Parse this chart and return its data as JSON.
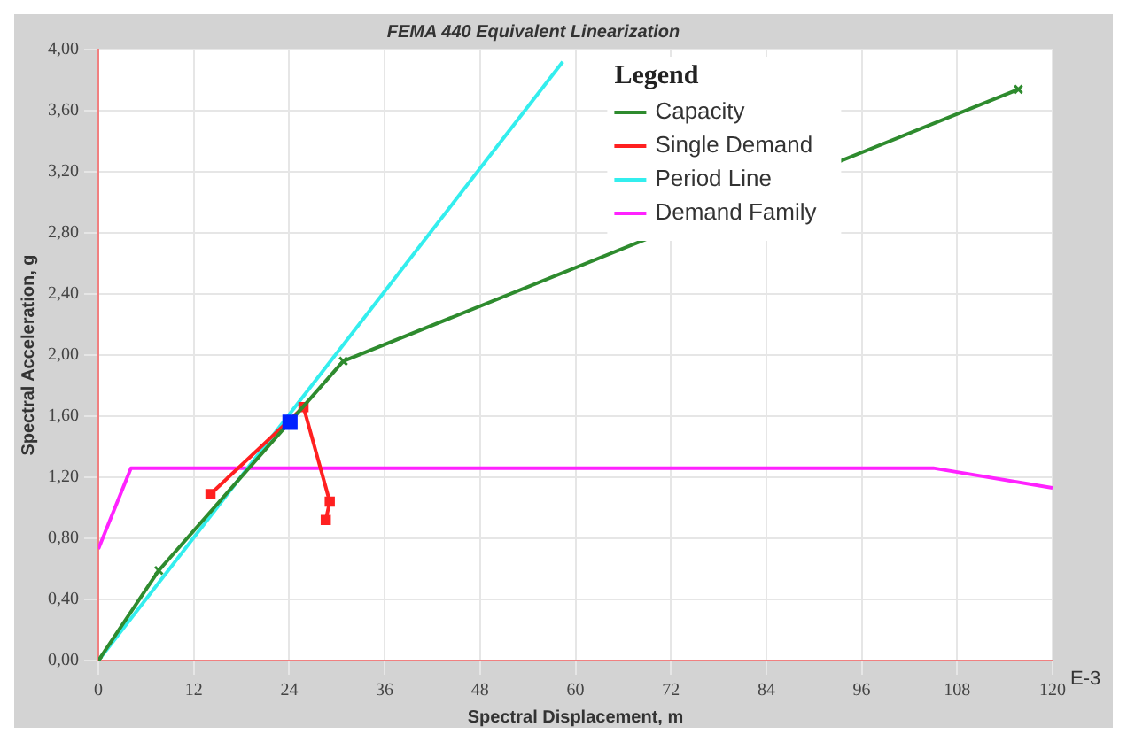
{
  "chart_data": {
    "type": "line",
    "title": "FEMA 440 Equivalent Linearization",
    "xlabel": "Spectral Displacement, m",
    "ylabel": "Spectral Acceleration, g",
    "legend_title": "Legend",
    "legend": "top right",
    "grid": true,
    "line_style": "solid",
    "xlim": [
      0,
      120
    ],
    "xticks": [
      0,
      12,
      24,
      36,
      48,
      60,
      72,
      84,
      96,
      108,
      120
    ],
    "ylim": [
      0,
      4
    ],
    "yticks": [
      {
        "value": 0,
        "label": "0,00"
      },
      {
        "value": 0.4,
        "label": "0,40"
      },
      {
        "value": 0.8,
        "label": "0,80"
      },
      {
        "value": 1.2,
        "label": "1,20"
      },
      {
        "value": 1.6,
        "label": "1,60"
      },
      {
        "value": 2.0,
        "label": "2,00"
      },
      {
        "value": 2.4,
        "label": "2,40"
      },
      {
        "value": 2.8,
        "label": "2,80"
      },
      {
        "value": 3.2,
        "label": "3,20"
      },
      {
        "value": 3.6,
        "label": "3,60"
      },
      {
        "value": 4.0,
        "label": "4,00"
      }
    ],
    "annotations": [
      "E-3"
    ],
    "series": [
      {
        "name": "Capacity",
        "color": "#2e8b2e",
        "marker": "cross",
        "x": [
          0,
          7.6,
          30.8,
          115.7
        ],
        "values": [
          0,
          0.59,
          1.96,
          3.74
        ]
      },
      {
        "name": "Single Demand",
        "color": "#ff2020",
        "marker": "square",
        "x": [
          14.1,
          25.8,
          29.1,
          28.6
        ],
        "values": [
          1.09,
          1.66,
          1.04,
          0.92
        ]
      },
      {
        "name": "Period Line",
        "color": "#33eeee",
        "marker": "none",
        "x": [
          0,
          58.4
        ],
        "values": [
          0,
          3.92
        ]
      },
      {
        "name": "Demand Family",
        "color": "#ff22ff",
        "marker": "none",
        "x": [
          0,
          4.1,
          105,
          120
        ],
        "values": [
          0.73,
          1.26,
          1.26,
          1.13
        ]
      },
      {
        "type": "scatter",
        "color": "#0022ff",
        "marker": "square",
        "x": [
          24.1
        ],
        "values": [
          1.56
        ]
      }
    ]
  }
}
